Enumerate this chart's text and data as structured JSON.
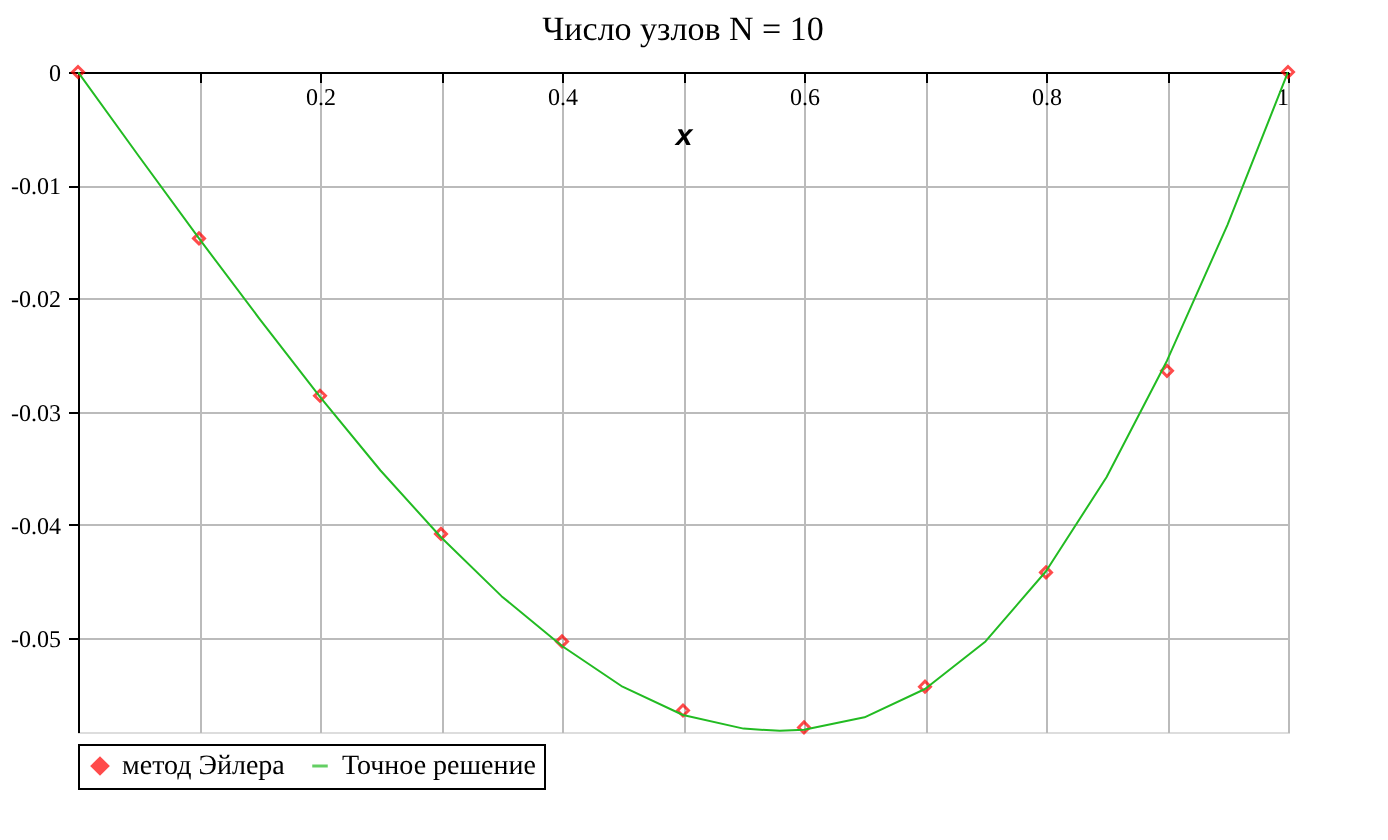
{
  "chart_data": {
    "type": "line",
    "title": "Число узлов N =  10",
    "xlabel": "x",
    "xlim": [
      0,
      1
    ],
    "ylim": [
      -0.0583,
      0
    ],
    "xticks": [
      {
        "value": 0,
        "label": null
      },
      {
        "value": 0.1,
        "label": null
      },
      0.2,
      {
        "value": 0.3,
        "label": null
      },
      0.4,
      {
        "value": 0.5,
        "label": null
      },
      0.6,
      {
        "value": 0.7,
        "label": null
      },
      0.8,
      {
        "value": 0.9,
        "label": null
      },
      1
    ],
    "yticks": [
      0,
      -0.01,
      -0.02,
      -0.03,
      -0.04,
      -0.05
    ],
    "grid": true,
    "legend": "bottom",
    "series": [
      {
        "name": "метод Эйлера",
        "type": "scatter",
        "marker": "diamond",
        "color": "#ff0000",
        "x": [
          0,
          0.1,
          0.2,
          0.3,
          0.4,
          0.5,
          0.6,
          0.7,
          0.8,
          0.9,
          1
        ],
        "values": [
          0,
          -0.0147,
          -0.0286,
          -0.0408,
          -0.0503,
          -0.0564,
          -0.0579,
          -0.0543,
          -0.0442,
          -0.0264,
          0
        ]
      },
      {
        "name": "Точное решение",
        "type": "line",
        "marker": "none",
        "color": "#22bb22",
        "x": [
          0,
          0.05,
          0.1,
          0.15,
          0.2,
          0.25,
          0.3,
          0.35,
          0.4,
          0.45,
          0.5,
          0.55,
          0.58,
          0.6,
          0.65,
          0.7,
          0.75,
          0.8,
          0.85,
          0.9,
          0.95,
          1
        ],
        "values": [
          0,
          -0.0074,
          -0.0147,
          -0.0218,
          -0.0287,
          -0.0352,
          -0.0411,
          -0.0463,
          -0.0507,
          -0.0543,
          -0.0568,
          -0.058,
          -0.0582,
          -0.0581,
          -0.057,
          -0.0545,
          -0.0503,
          -0.0441,
          -0.0358,
          -0.0255,
          -0.0135,
          0
        ]
      }
    ]
  }
}
